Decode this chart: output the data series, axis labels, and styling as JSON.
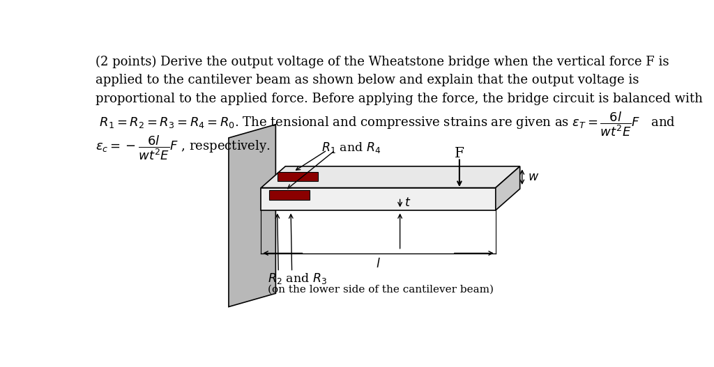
{
  "bg_color": "#ffffff",
  "text_color": "#000000",
  "strain_gauge_color": "#8b0000",
  "fontsize_main": 13.0,
  "fontsize_label": 12.5,
  "fontsize_sub": 11.0,
  "line1": "(2 points) Derive the output voltage of the Wheatstone bridge when the vertical force F is",
  "line2": "applied to the cantilever beam as shown below and explain that the output voltage is",
  "line3": "proportional to the applied force. Before applying the force, the bridge circuit is balanced with",
  "line4a": " $R_1 = R_2 = R_3 = R_4 = R_0$. The tensional and compressive strains are given as $\\varepsilon_T = \\dfrac{6l}{wt^2E}F$   and",
  "line5": "$\\varepsilon_c = -\\dfrac{6l}{wt^2E}F$ , respectively.",
  "label_R1R4": "$R_1$ and $R_4$",
  "label_R2R3": "$R_2$ and $R_3$",
  "label_sub": "(on the lower side of the cantilever beam)",
  "label_F": "F",
  "label_t": "$t$",
  "label_l": "$l$",
  "label_w": "$w$",
  "wall_face_color": "#b8b8b8",
  "wall_side_color": "#a0a0a0",
  "beam_top_color": "#e8e8e8",
  "beam_front_color": "#f0f0f0",
  "beam_right_color": "#c8c8c8"
}
